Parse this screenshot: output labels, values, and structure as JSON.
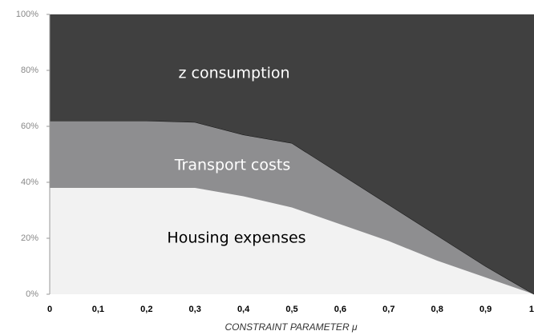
{
  "chart_data": {
    "type": "stacked_area",
    "x_label": "CONSTRAINT PARAMETER μ",
    "x": [
      0,
      0.1,
      0.2,
      0.3,
      0.4,
      0.5,
      0.6,
      0.7,
      0.8,
      0.9,
      1
    ],
    "series": [
      {
        "name": "Housing expenses",
        "color": "#f2f2f2",
        "values": [
          38,
          38,
          38,
          38,
          35,
          31,
          25,
          19,
          12,
          6,
          0
        ]
      },
      {
        "name": "Transport costs",
        "color": "#8e8e90",
        "values": [
          24,
          24,
          24,
          23.5,
          22,
          23,
          18,
          13,
          9,
          4,
          0
        ]
      },
      {
        "name": "z consumption",
        "color": "#404040",
        "values": [
          38,
          38,
          38,
          38.5,
          43,
          46,
          57,
          68,
          79,
          90,
          100
        ]
      }
    ],
    "xlim": [
      0,
      1
    ],
    "xticks": [
      0,
      {
        "value": 0.1,
        "label": "0,1"
      },
      {
        "value": 0.2,
        "label": "0,2"
      },
      {
        "value": 0.3,
        "label": "0,3"
      },
      {
        "value": 0.4,
        "label": "0,4"
      },
      {
        "value": 0.5,
        "label": "0,5"
      },
      {
        "value": 0.6,
        "label": "0,6"
      },
      {
        "value": 0.7,
        "label": "0,7"
      },
      {
        "value": 0.8,
        "label": "0,8"
      },
      {
        "value": 0.9,
        "label": "0,9"
      },
      1
    ],
    "ylim": [
      0,
      100
    ],
    "yticks": [
      {
        "value": 0,
        "label": "0%"
      },
      {
        "value": 20,
        "label": "20%"
      },
      {
        "value": 40,
        "label": "40%"
      },
      {
        "value": 60,
        "label": "60%"
      },
      {
        "value": 80,
        "label": "80%"
      },
      {
        "value": 100,
        "label": "100%"
      }
    ]
  }
}
